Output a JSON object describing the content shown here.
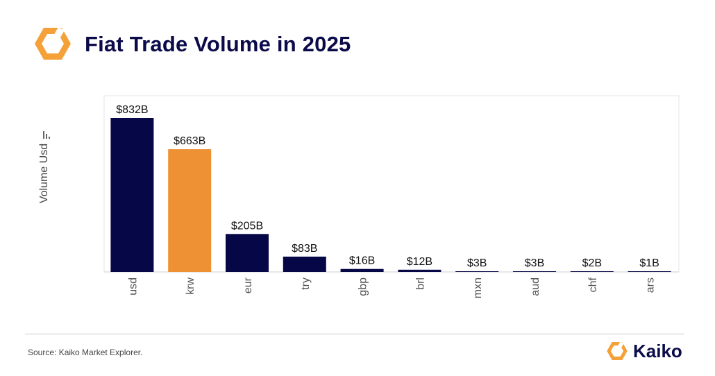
{
  "header": {
    "title": "Fiat Trade Volume in 2025",
    "logo_icon": "kaiko-hexagon-icon"
  },
  "footer": {
    "source": "Source: Kaiko Market Explorer.",
    "brand_name": "Kaiko",
    "brand_icon": "kaiko-hexagon-icon"
  },
  "colors": {
    "primary": "#060746",
    "highlight": "#EE9034",
    "logo_orange": "#F5A13A",
    "title": "#0b0b4a"
  },
  "chart_data": {
    "type": "bar",
    "title": "Fiat Trade Volume in 2025",
    "xlabel": "",
    "ylabel": "Volume Usd",
    "ylim": [
      0,
      900
    ],
    "grid": false,
    "legend": "none",
    "categories": [
      "usd",
      "krw",
      "eur",
      "try",
      "gbp",
      "brl",
      "mxn",
      "aud",
      "chf",
      "ars"
    ],
    "values": [
      832,
      663,
      205,
      83,
      16,
      12,
      3,
      3,
      2,
      1
    ],
    "data_labels": [
      "$832B",
      "$663B",
      "$205B",
      "$83B",
      "$16B",
      "$12B",
      "$3B",
      "$3B",
      "$2B",
      "$1B"
    ],
    "highlight_category": "krw",
    "unit": "USD billions"
  }
}
